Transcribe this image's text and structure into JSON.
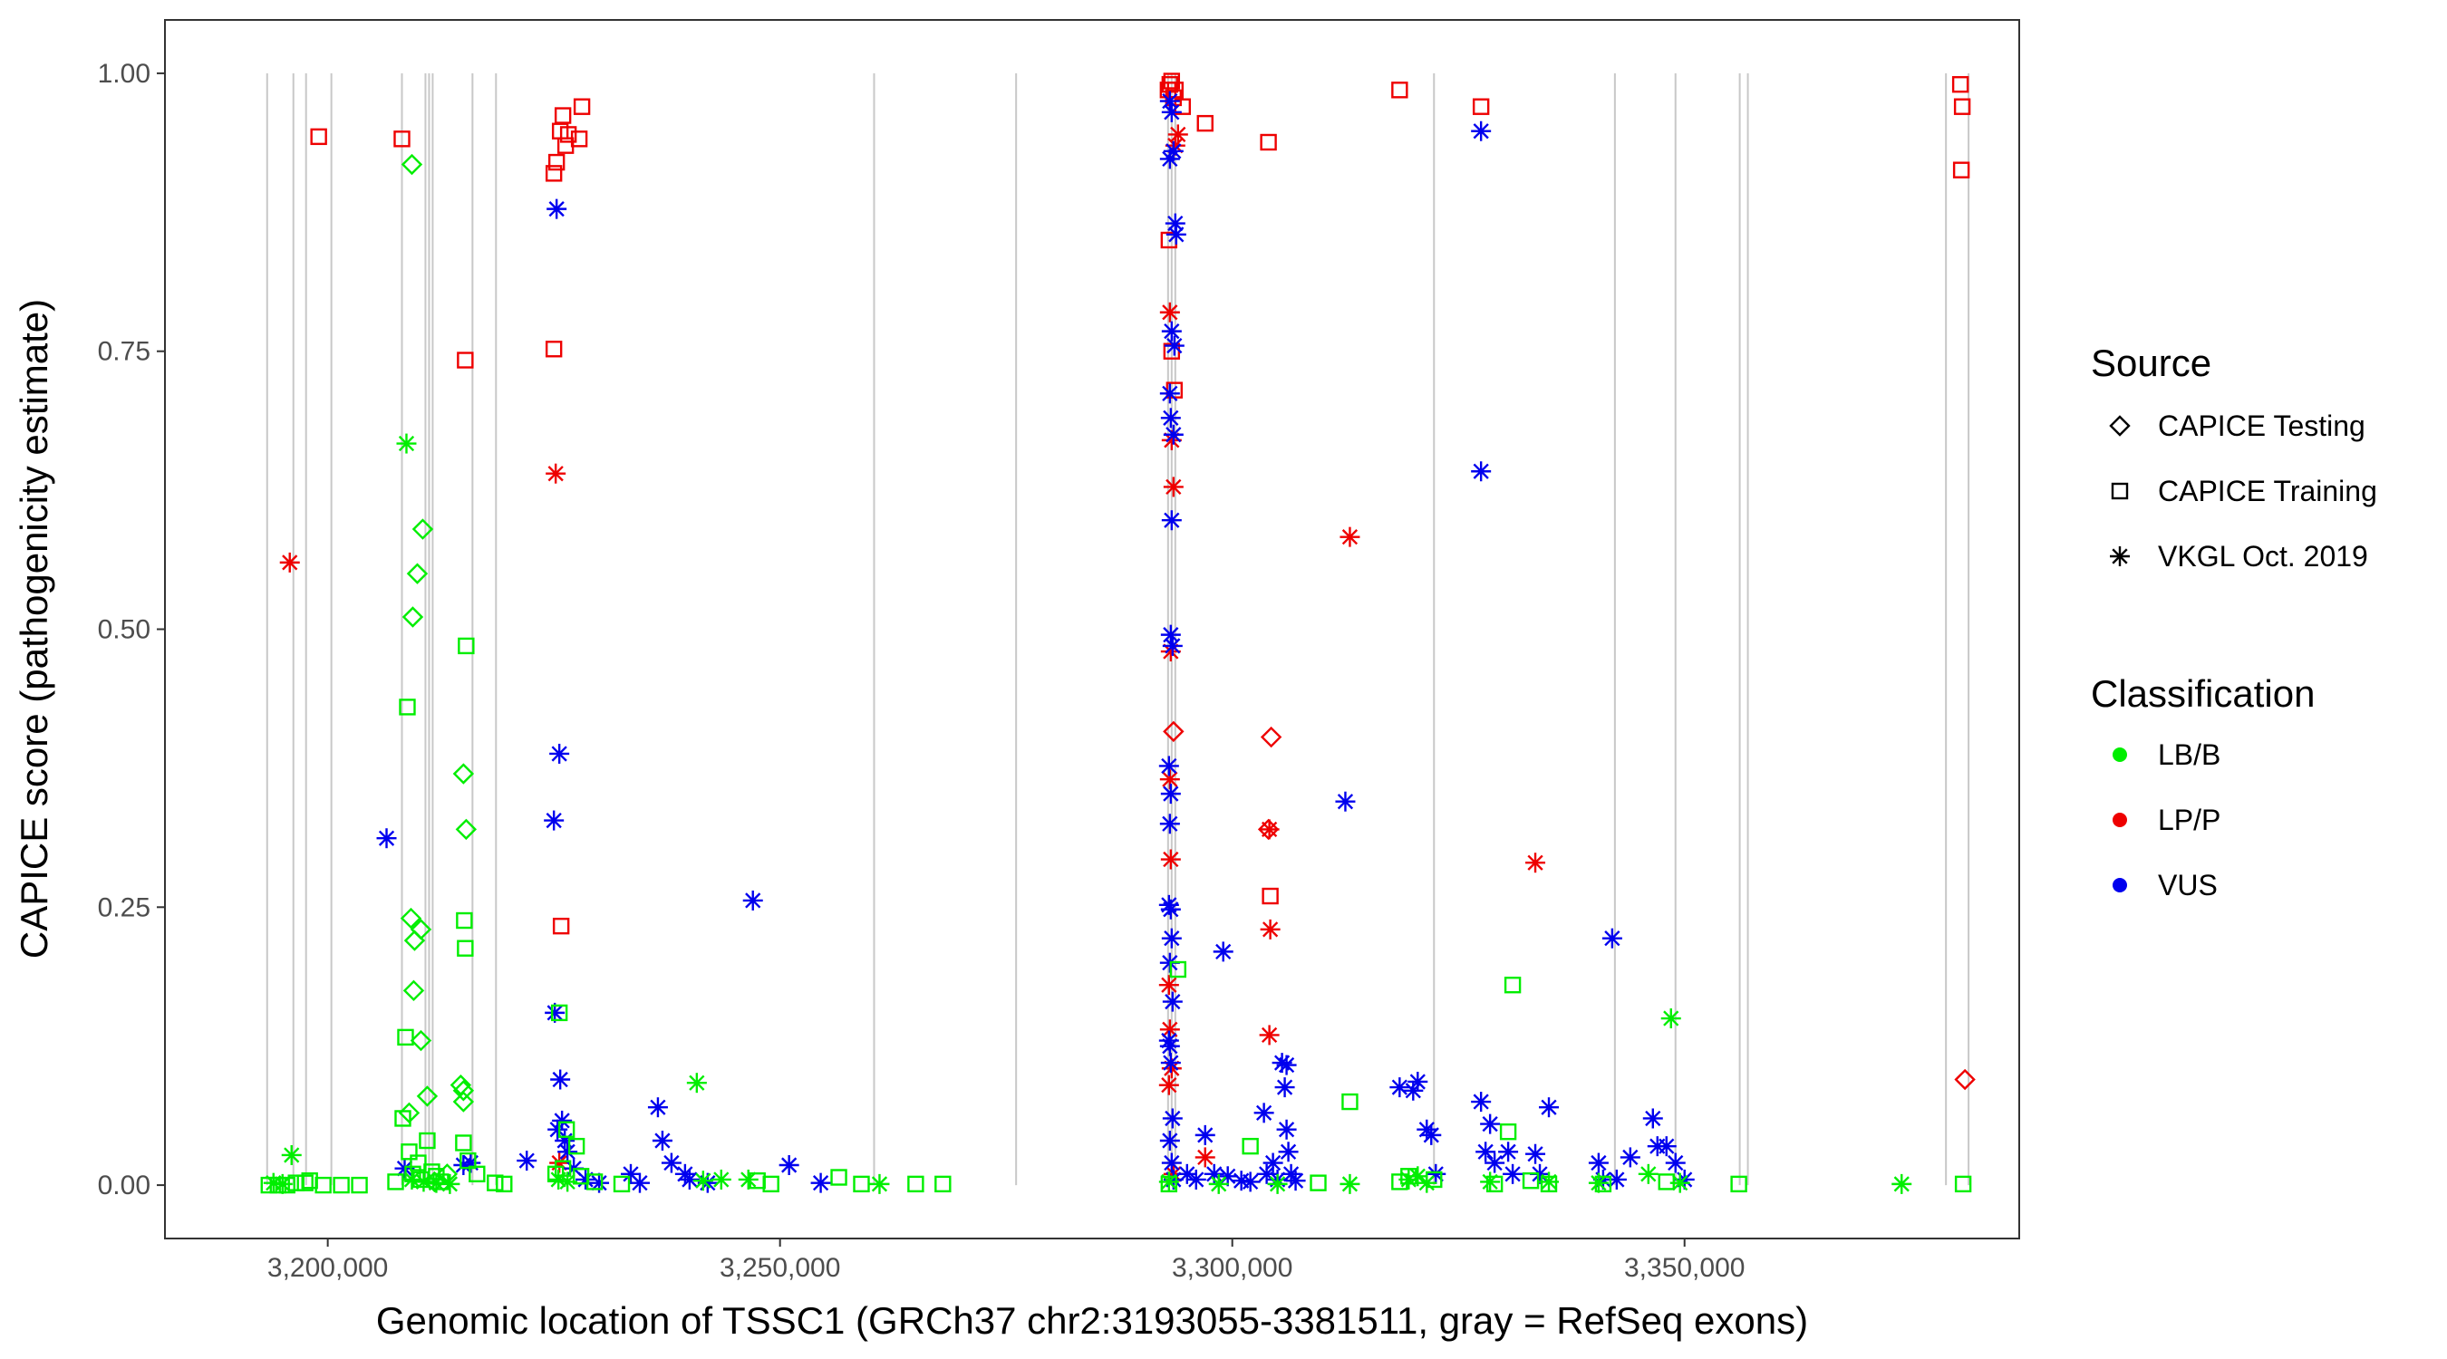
{
  "chart_data": {
    "type": "scatter",
    "title": "",
    "xlabel": "Genomic location of TSSC1 (GRCh37 chr2:3193055-3381511, gray = RefSeq exons)",
    "ylabel": "CAPICE score (pathogenicity estimate)",
    "xlim": [
      3182000,
      3387000
    ],
    "ylim": [
      -0.048,
      1.048
    ],
    "x_ticks": [
      3200000,
      3250000,
      3300000,
      3350000
    ],
    "x_tick_labels": [
      "3,200,000",
      "3,250,000",
      "3,300,000",
      "3,350,000"
    ],
    "y_ticks": [
      0,
      0.25,
      0.5,
      0.75,
      1
    ],
    "y_tick_labels": [
      "0.00",
      "0.25",
      "0.50",
      "0.75",
      "1.00"
    ],
    "grid": false,
    "exon_positions": [
      3193300,
      3196200,
      3197600,
      3200400,
      3208200,
      3210800,
      3211200,
      3211600,
      3216000,
      3218600,
      3260400,
      3276100,
      3292900,
      3293300,
      3293700,
      3322300,
      3342300,
      3349000,
      3356100,
      3357000,
      3378900,
      3381400
    ],
    "legend": {
      "position": "right",
      "source_title": "Source",
      "source_items": [
        {
          "label": "CAPICE Testing",
          "shape": "diamond"
        },
        {
          "label": "CAPICE Training",
          "shape": "square"
        },
        {
          "label": "VKGL Oct. 2019",
          "shape": "asterisk"
        }
      ],
      "class_title": "Classification",
      "class_items": [
        {
          "label": "LB/B",
          "color": "#00ee00"
        },
        {
          "label": "LP/P",
          "color": "#ee0000"
        },
        {
          "label": "VUS",
          "color": "#0000ee"
        }
      ]
    },
    "colors": {
      "LB/B": "#00ee00",
      "LP/P": "#ee0000",
      "VUS": "#0000ee"
    },
    "series": [
      {
        "classification": "LP/P",
        "source": "CAPICE Training",
        "shape": "square",
        "points": [
          [
            3199000,
            0.943
          ],
          [
            3208200,
            0.941
          ],
          [
            3215200,
            0.742
          ],
          [
            3225000,
            0.752
          ],
          [
            3225000,
            0.91
          ],
          [
            3225300,
            0.92
          ],
          [
            3225700,
            0.948
          ],
          [
            3226000,
            0.962
          ],
          [
            3226300,
            0.935
          ],
          [
            3226600,
            0.945
          ],
          [
            3227800,
            0.941
          ],
          [
            3228100,
            0.97
          ],
          [
            3225800,
            0.233
          ],
          [
            3292900,
            0.985
          ],
          [
            3293100,
            0.99
          ],
          [
            3293300,
            0.993
          ],
          [
            3293500,
            0.978
          ],
          [
            3293700,
            0.985
          ],
          [
            3293000,
            0.85
          ],
          [
            3293300,
            0.75
          ],
          [
            3293600,
            0.715
          ],
          [
            3294500,
            0.97
          ],
          [
            3297000,
            0.955
          ],
          [
            3304000,
            0.938
          ],
          [
            3304200,
            0.26
          ],
          [
            3318500,
            0.985
          ],
          [
            3327500,
            0.97
          ],
          [
            3380500,
            0.99
          ],
          [
            3380700,
            0.97
          ],
          [
            3380600,
            0.913
          ]
        ]
      },
      {
        "classification": "LP/P",
        "source": "CAPICE Testing",
        "shape": "diamond",
        "points": [
          [
            3293500,
            0.408
          ],
          [
            3304300,
            0.403
          ],
          [
            3304000,
            0.32
          ],
          [
            3381000,
            0.095
          ]
        ]
      },
      {
        "classification": "LP/P",
        "source": "VKGL Oct. 2019",
        "shape": "asterisk",
        "points": [
          [
            3195800,
            0.56
          ],
          [
            3225200,
            0.64
          ],
          [
            3293100,
            0.785
          ],
          [
            3293300,
            0.67
          ],
          [
            3293500,
            0.628
          ],
          [
            3293200,
            0.48
          ],
          [
            3293100,
            0.365
          ],
          [
            3293200,
            0.293
          ],
          [
            3293000,
            0.18
          ],
          [
            3293100,
            0.14
          ],
          [
            3293300,
            0.105
          ],
          [
            3293000,
            0.09
          ],
          [
            3294000,
            0.945
          ],
          [
            3293700,
            0.935
          ],
          [
            3304100,
            0.32
          ],
          [
            3304200,
            0.23
          ],
          [
            3304100,
            0.135
          ],
          [
            3313000,
            0.583
          ],
          [
            3333500,
            0.29
          ],
          [
            3225600,
            0.02
          ],
          [
            3293500,
            0.01
          ],
          [
            3297000,
            0.025
          ]
        ]
      },
      {
        "classification": "VUS",
        "source": "VKGL Oct. 2019",
        "shape": "asterisk",
        "points": [
          [
            3206500,
            0.312
          ],
          [
            3208500,
            0.015
          ],
          [
            3215000,
            0.018
          ],
          [
            3215800,
            0.02
          ],
          [
            3222000,
            0.022
          ],
          [
            3225300,
            0.878
          ],
          [
            3225600,
            0.388
          ],
          [
            3225000,
            0.328
          ],
          [
            3225100,
            0.155
          ],
          [
            3225700,
            0.095
          ],
          [
            3225400,
            0.05
          ],
          [
            3225900,
            0.058
          ],
          [
            3226200,
            0.04
          ],
          [
            3226500,
            0.03
          ],
          [
            3227200,
            0.015
          ],
          [
            3228500,
            0.005
          ],
          [
            3230000,
            0.002
          ],
          [
            3233500,
            0.01
          ],
          [
            3234500,
            0.002
          ],
          [
            3236500,
            0.07
          ],
          [
            3237000,
            0.04
          ],
          [
            3238000,
            0.02
          ],
          [
            3239500,
            0.01
          ],
          [
            3240000,
            0.005
          ],
          [
            3242000,
            0.002
          ],
          [
            3247000,
            0.256
          ],
          [
            3251000,
            0.018
          ],
          [
            3254500,
            0.002
          ],
          [
            3293100,
            0.975
          ],
          [
            3293300,
            0.965
          ],
          [
            3293500,
            0.93
          ],
          [
            3293100,
            0.923
          ],
          [
            3293700,
            0.865
          ],
          [
            3293800,
            0.855
          ],
          [
            3293300,
            0.768
          ],
          [
            3293600,
            0.755
          ],
          [
            3293100,
            0.712
          ],
          [
            3293200,
            0.69
          ],
          [
            3293500,
            0.675
          ],
          [
            3293300,
            0.598
          ],
          [
            3293200,
            0.495
          ],
          [
            3293400,
            0.485
          ],
          [
            3293000,
            0.377
          ],
          [
            3293200,
            0.352
          ],
          [
            3293100,
            0.325
          ],
          [
            3293000,
            0.252
          ],
          [
            3293200,
            0.248
          ],
          [
            3293300,
            0.222
          ],
          [
            3293100,
            0.2
          ],
          [
            3293400,
            0.165
          ],
          [
            3293000,
            0.13
          ],
          [
            3293100,
            0.125
          ],
          [
            3293200,
            0.11
          ],
          [
            3293400,
            0.06
          ],
          [
            3293100,
            0.04
          ],
          [
            3293300,
            0.02
          ],
          [
            3293500,
            0.005
          ],
          [
            3295000,
            0.01
          ],
          [
            3296000,
            0.005
          ],
          [
            3297000,
            0.045
          ],
          [
            3298000,
            0.01
          ],
          [
            3299000,
            0.21
          ],
          [
            3299500,
            0.008
          ],
          [
            3301000,
            0.004
          ],
          [
            3302000,
            0.003
          ],
          [
            3303500,
            0.065
          ],
          [
            3303800,
            0.01
          ],
          [
            3304500,
            0.02
          ],
          [
            3305000,
            0.005
          ],
          [
            3305500,
            0.11
          ],
          [
            3306000,
            0.108
          ],
          [
            3305800,
            0.088
          ],
          [
            3306000,
            0.05
          ],
          [
            3306200,
            0.03
          ],
          [
            3306500,
            0.01
          ],
          [
            3307000,
            0.004
          ],
          [
            3312500,
            0.345
          ],
          [
            3318500,
            0.088
          ],
          [
            3320000,
            0.085
          ],
          [
            3320500,
            0.093
          ],
          [
            3321500,
            0.05
          ],
          [
            3322000,
            0.045
          ],
          [
            3322500,
            0.01
          ],
          [
            3327500,
            0.948
          ],
          [
            3327500,
            0.642
          ],
          [
            3327500,
            0.075
          ],
          [
            3328000,
            0.03
          ],
          [
            3328500,
            0.055
          ],
          [
            3329000,
            0.02
          ],
          [
            3330500,
            0.03
          ],
          [
            3331000,
            0.01
          ],
          [
            3333500,
            0.028
          ],
          [
            3334000,
            0.01
          ],
          [
            3335000,
            0.07
          ],
          [
            3340500,
            0.02
          ],
          [
            3341000,
            0.005
          ],
          [
            3342000,
            0.222
          ],
          [
            3342500,
            0.005
          ],
          [
            3344000,
            0.025
          ],
          [
            3346500,
            0.06
          ],
          [
            3347000,
            0.035
          ],
          [
            3348000,
            0.035
          ],
          [
            3349000,
            0.02
          ],
          [
            3350000,
            0.005
          ]
        ]
      },
      {
        "classification": "LB/B",
        "source": "CAPICE Training",
        "shape": "square",
        "points": [
          [
            3193500,
            0
          ],
          [
            3194500,
            0
          ],
          [
            3195500,
            0
          ],
          [
            3196500,
            0.002
          ],
          [
            3197500,
            0.002
          ],
          [
            3198000,
            0.004
          ],
          [
            3199500,
            0
          ],
          [
            3201500,
            0
          ],
          [
            3203500,
            0
          ],
          [
            3207500,
            0.003
          ],
          [
            3208300,
            0.06
          ],
          [
            3208600,
            0.133
          ],
          [
            3208800,
            0.43
          ],
          [
            3209000,
            0.03
          ],
          [
            3209400,
            0.01
          ],
          [
            3210000,
            0.02
          ],
          [
            3210300,
            0.005
          ],
          [
            3211000,
            0.04
          ],
          [
            3211500,
            0.012
          ],
          [
            3212000,
            0.008
          ],
          [
            3212500,
            0.003
          ],
          [
            3215100,
            0.238
          ],
          [
            3215200,
            0.213
          ],
          [
            3215300,
            0.485
          ],
          [
            3215000,
            0.038
          ],
          [
            3215500,
            0.022
          ],
          [
            3216500,
            0.01
          ],
          [
            3218500,
            0.002
          ],
          [
            3219500,
            0.001
          ],
          [
            3225200,
            0.01
          ],
          [
            3225600,
            0.155
          ],
          [
            3226000,
            0.015
          ],
          [
            3226400,
            0.05
          ],
          [
            3227500,
            0.035
          ],
          [
            3228000,
            0.008
          ],
          [
            3229500,
            0.003
          ],
          [
            3232500,
            0.001
          ],
          [
            3247500,
            0.004
          ],
          [
            3249000,
            0.001
          ],
          [
            3256500,
            0.007
          ],
          [
            3259000,
            0.001
          ],
          [
            3265000,
            0.001
          ],
          [
            3268000,
            0.001
          ],
          [
            3294000,
            0.194
          ],
          [
            3293000,
            0.001
          ],
          [
            3302000,
            0.035
          ],
          [
            3309500,
            0.002
          ],
          [
            3313000,
            0.075
          ],
          [
            3318500,
            0.003
          ],
          [
            3319500,
            0.008
          ],
          [
            3322300,
            0.005
          ],
          [
            3329000,
            0.001
          ],
          [
            3330500,
            0.048
          ],
          [
            3331000,
            0.18
          ],
          [
            3333000,
            0.004
          ],
          [
            3335000,
            0.001
          ],
          [
            3341000,
            0.001
          ],
          [
            3348000,
            0.003
          ],
          [
            3356000,
            0.001
          ],
          [
            3380800,
            0.001
          ]
        ]
      },
      {
        "classification": "LB/B",
        "source": "CAPICE Testing",
        "shape": "diamond",
        "points": [
          [
            3209300,
            0.918
          ],
          [
            3210500,
            0.59
          ],
          [
            3209900,
            0.55
          ],
          [
            3209400,
            0.511
          ],
          [
            3215000,
            0.37
          ],
          [
            3215300,
            0.32
          ],
          [
            3209200,
            0.24
          ],
          [
            3210300,
            0.23
          ],
          [
            3209600,
            0.22
          ],
          [
            3209500,
            0.175
          ],
          [
            3210300,
            0.13
          ],
          [
            3211000,
            0.08
          ],
          [
            3214700,
            0.09
          ],
          [
            3215000,
            0.085
          ],
          [
            3209000,
            0.065
          ],
          [
            3215000,
            0.075
          ],
          [
            3213200,
            0.01
          ],
          [
            3211800,
            0.003
          ]
        ]
      },
      {
        "classification": "LB/B",
        "source": "VKGL Oct. 2019",
        "shape": "asterisk",
        "points": [
          [
            3196000,
            0.027
          ],
          [
            3194000,
            0.002
          ],
          [
            3195000,
            0.001
          ],
          [
            3208700,
            0.667
          ],
          [
            3209300,
            0.005
          ],
          [
            3210600,
            0.003
          ],
          [
            3212000,
            0.002
          ],
          [
            3213500,
            0.001
          ],
          [
            3225500,
            0.005
          ],
          [
            3226500,
            0.003
          ],
          [
            3240800,
            0.092
          ],
          [
            3241500,
            0.004
          ],
          [
            3243500,
            0.005
          ],
          [
            3246500,
            0.005
          ],
          [
            3261000,
            0.001
          ],
          [
            3293000,
            0.003
          ],
          [
            3298500,
            0.001
          ],
          [
            3305000,
            0.001
          ],
          [
            3313000,
            0.001
          ],
          [
            3319500,
            0.005
          ],
          [
            3320500,
            0.008
          ],
          [
            3321500,
            0.002
          ],
          [
            3328500,
            0.003
          ],
          [
            3335000,
            0.003
          ],
          [
            3340500,
            0.002
          ],
          [
            3346000,
            0.01
          ],
          [
            3348500,
            0.15
          ],
          [
            3349500,
            0.002
          ],
          [
            3374000,
            0.001
          ]
        ]
      }
    ]
  }
}
